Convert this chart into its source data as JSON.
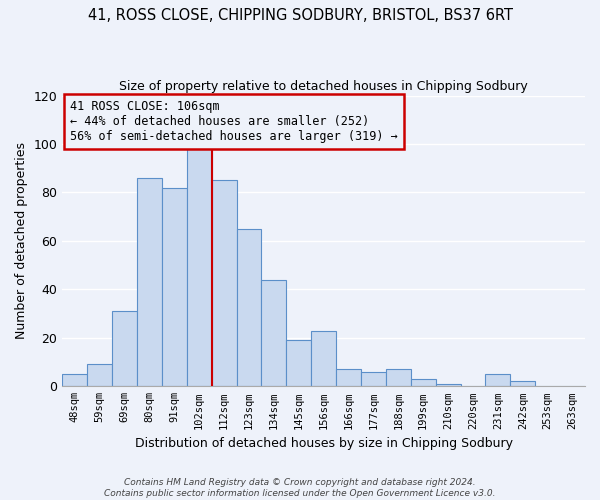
{
  "title": "41, ROSS CLOSE, CHIPPING SODBURY, BRISTOL, BS37 6RT",
  "subtitle": "Size of property relative to detached houses in Chipping Sodbury",
  "xlabel": "Distribution of detached houses by size in Chipping Sodbury",
  "ylabel": "Number of detached properties",
  "bin_labels": [
    "48sqm",
    "59sqm",
    "69sqm",
    "80sqm",
    "91sqm",
    "102sqm",
    "112sqm",
    "123sqm",
    "134sqm",
    "145sqm",
    "156sqm",
    "166sqm",
    "177sqm",
    "188sqm",
    "199sqm",
    "210sqm",
    "220sqm",
    "231sqm",
    "242sqm",
    "253sqm",
    "263sqm"
  ],
  "bar_heights": [
    5,
    9,
    31,
    86,
    82,
    99,
    85,
    65,
    44,
    19,
    23,
    7,
    6,
    7,
    3,
    1,
    0,
    5,
    2,
    0,
    0
  ],
  "bar_color": "#c9d9ef",
  "bar_edge_color": "#5b8fc9",
  "ylim": [
    0,
    120
  ],
  "yticks": [
    0,
    20,
    40,
    60,
    80,
    100,
    120
  ],
  "vline_x": 5.5,
  "vline_color": "#cc0000",
  "annotation_title": "41 ROSS CLOSE: 106sqm",
  "annotation_line1": "← 44% of detached houses are smaller (252)",
  "annotation_line2": "56% of semi-detached houses are larger (319) →",
  "annotation_box_edgecolor": "#cc0000",
  "footer1": "Contains HM Land Registry data © Crown copyright and database right 2024.",
  "footer2": "Contains public sector information licensed under the Open Government Licence v3.0.",
  "background_color": "#eef2fa",
  "grid_color": "#ffffff"
}
